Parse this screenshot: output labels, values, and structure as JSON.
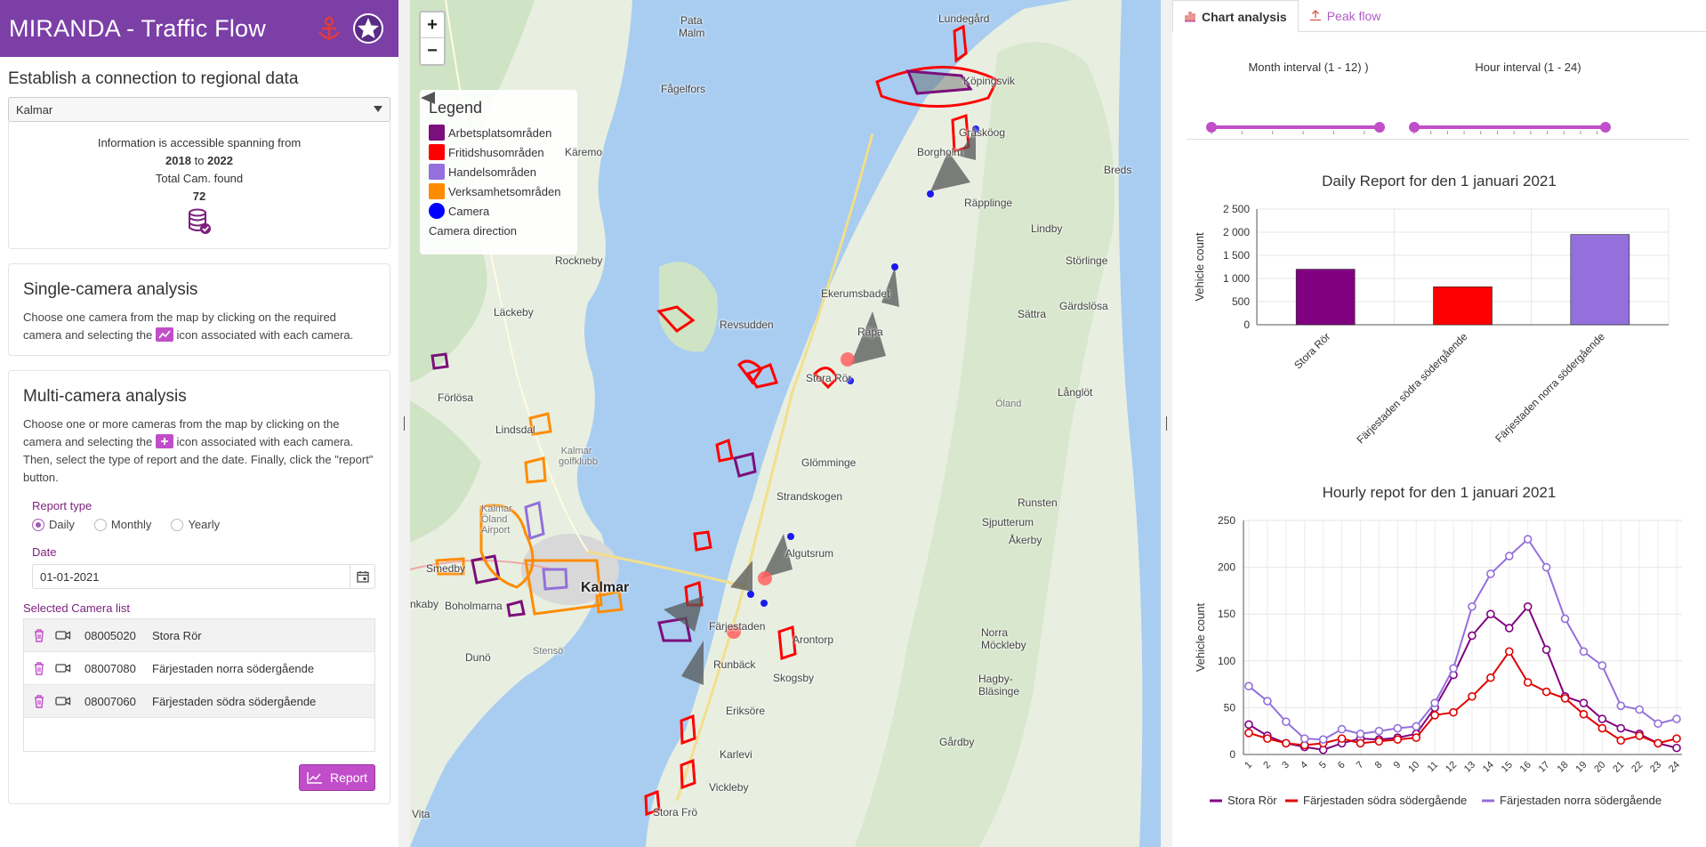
{
  "header": {
    "title": "MIRANDA - Traffic Flow",
    "logos": [
      "anchor-logo",
      "star-logo"
    ]
  },
  "region": {
    "heading": "Establish a connection to regional data",
    "selected": "Kalmar",
    "info_line1": "Information is accessible spanning from",
    "year_from": "2018",
    "to_word": "to",
    "year_to": "2022",
    "total_label": "Total Cam. found",
    "total_count": "72"
  },
  "single": {
    "title": "Single-camera analysis",
    "text_a": "Choose one camera from the map by clicking on the required camera and selecting the",
    "text_b": "icon associated with each camera."
  },
  "multi": {
    "title": "Multi-camera analysis",
    "text_a": "Choose one or more cameras from the map by clicking on the camera and selecting the",
    "text_b": "icon associated with each camera. Then, select the type of report and the date. Finally, click the \"report\" button.",
    "report_type_label": "Report type",
    "report_types": [
      "Daily",
      "Monthly",
      "Yearly"
    ],
    "report_type_selected": "Daily",
    "date_label": "Date",
    "date_value": "01-01-2021",
    "camera_list_label": "Selected Camera list",
    "cameras": [
      {
        "id": "08005020",
        "name": "Stora Rör"
      },
      {
        "id": "08007080",
        "name": "Färjestaden norra södergående"
      },
      {
        "id": "08007060",
        "name": "Färjestaden södra södergående"
      }
    ],
    "report_button": "Report"
  },
  "map": {
    "zoom_in": "+",
    "zoom_out": "−",
    "legend_title": "Legend",
    "legend": [
      {
        "label": "Arbetsplatsområden",
        "color": "#7b0f7b"
      },
      {
        "label": "Fritidshusområden",
        "color": "#ff0000"
      },
      {
        "label": "Handelsområden",
        "color": "#9370db"
      },
      {
        "label": "Verksamhetsområden",
        "color": "#ff8c00"
      },
      {
        "label": "Camera",
        "color": "#0000ff"
      },
      {
        "label": "Camera direction",
        "color": "#555555"
      }
    ],
    "places": {
      "lundegard": "Lundegård",
      "pata_malm": "Pata",
      "malm": "Malm",
      "fagelfors": "Fågelfors",
      "karemo": "Käremo",
      "borgholm_n": "Köpingsvik",
      "grankog": "Gråsköog",
      "borgholm": "Borgholm",
      "bredsatra": "Breds",
      "rapplinge": "Räpplinge",
      "lindby": "Lindby",
      "rockneby": "Rockneby",
      "storlinge": "Störlinge",
      "ekerum": "Ekerumsbadet",
      "sattra": "Sättra",
      "gardslosa": "Gärdslösa",
      "lackeby": "Läckeby",
      "revsudden": "Revsudden",
      "rala": "Räpa",
      "stora_ror": "Stora Rör",
      "langlot": "Långlöt",
      "forlosa": "Förlösa",
      "oland": "Öland",
      "lindsdal": "Lindsdal",
      "kalmar_golf": "Kalmar golfklubb",
      "glomminge": "Glömminge",
      "strandskogen": "Strandskogen",
      "runsten": "Runsten",
      "sjuttorrum": "Sjputterum",
      "akerby": "Åkerby",
      "kalmar_airport": "Kalmar Öland Airport",
      "algutsrum": "Algutsrum",
      "smedby": "Smedby",
      "kalmar": "Kalmar",
      "boholmarna": "Boholmarna",
      "farjestaden": "Färjestaden",
      "arontorp": "Arontorp",
      "norra_mockleby": "Norra Möckleby",
      "duno": "Dunö",
      "stenso": "Stensö",
      "runback": "Runbäck",
      "skogsby": "Skogsby",
      "hagby": "Hagby-Bläsinge",
      "eriksore": "Eriksöre",
      "gardby": "Gårdby",
      "karlevi": "Karlevi",
      "vickleby": "Vickleby",
      "stora_fro": "Stora Frö",
      "vita": "Vita",
      "inkaby": "nkaby"
    }
  },
  "tabs": [
    {
      "label": "Chart analysis",
      "active": true
    },
    {
      "label": "Peak flow",
      "active": false
    }
  ],
  "sliders": {
    "month": {
      "title": "Month interval (1 - 12) )",
      "ticks": [
        "1",
        "3",
        "5",
        "7",
        "9",
        "11"
      ],
      "min": 1,
      "max": 12,
      "from": 1,
      "to": 12
    },
    "hour": {
      "title": "Hour interval (1 - 24)",
      "ticks": [
        "1",
        "3",
        "5",
        "7",
        "9",
        "11",
        "13",
        "15",
        "17",
        "19",
        "21",
        "23"
      ],
      "min": 1,
      "max": 24,
      "from": 1,
      "to": 24
    }
  },
  "chart_data": [
    {
      "type": "bar",
      "title": "Daily Report for den 1 januari 2021",
      "ylabel": "Vehicle count",
      "ylim": [
        0,
        2500
      ],
      "yticks": [
        "0",
        "500",
        "1 000",
        "1 500",
        "2 000",
        "2 500"
      ],
      "categories": [
        "Stora Rör",
        "Färjestaden södra södergående",
        "Färjestaden norra södergående"
      ],
      "values": [
        1200,
        820,
        1950
      ],
      "colors": [
        "#800080",
        "#ff0000",
        "#9370db"
      ]
    },
    {
      "type": "line",
      "title": "Hourly repot for den 1 januari 2021",
      "ylabel": "Vehicle count",
      "ylim": [
        0,
        250
      ],
      "yticks": [
        "0",
        "50",
        "100",
        "150",
        "200",
        "250"
      ],
      "x": [
        "1",
        "2",
        "3",
        "4",
        "5",
        "6",
        "7",
        "8",
        "9",
        "10",
        "11",
        "12",
        "13",
        "14",
        "15",
        "16",
        "17",
        "18",
        "19",
        "20",
        "21",
        "22",
        "23",
        "24"
      ],
      "series": [
        {
          "name": "Stora Rör",
          "color": "#800080",
          "values": [
            32,
            20,
            12,
            8,
            5,
            12,
            17,
            16,
            18,
            22,
            50,
            85,
            127,
            150,
            135,
            158,
            112,
            62,
            55,
            38,
            28,
            22,
            12,
            7
          ]
        },
        {
          "name": "Färjestaden södra södergående",
          "color": "#e00000",
          "values": [
            23,
            17,
            12,
            10,
            12,
            17,
            12,
            14,
            16,
            18,
            42,
            45,
            62,
            82,
            110,
            77,
            67,
            60,
            43,
            28,
            15,
            20,
            12,
            17
          ]
        },
        {
          "name": "Färjestaden norra södergående",
          "color": "#9370db",
          "values": [
            73,
            57,
            35,
            17,
            16,
            27,
            22,
            25,
            28,
            30,
            55,
            92,
            158,
            193,
            212,
            230,
            200,
            145,
            110,
            95,
            52,
            48,
            33,
            38
          ]
        }
      ]
    }
  ]
}
